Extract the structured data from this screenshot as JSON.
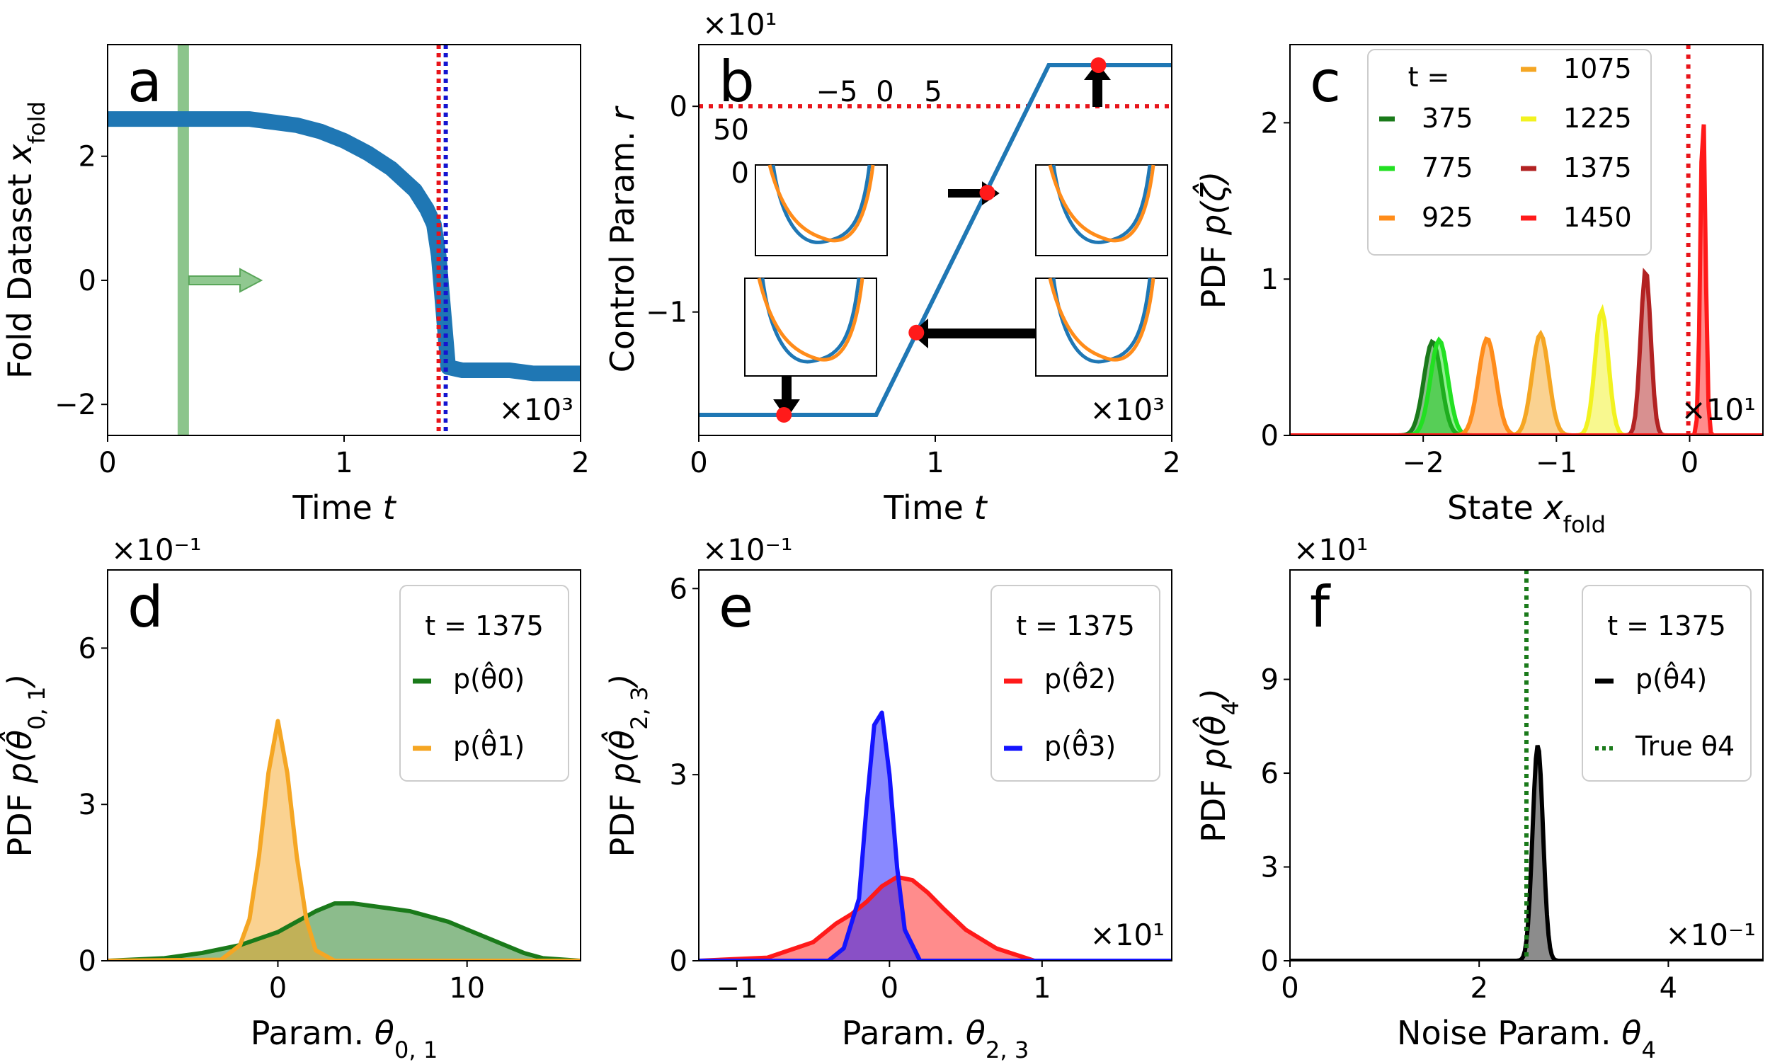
{
  "chart_data": [
    {
      "panel": "a",
      "type": "line",
      "xlabel": "Time t",
      "ylabel": "Fold Dataset x_fold",
      "x_multiplier": "×10³",
      "xlim": [
        0,
        2
      ],
      "ylim": [
        -2.5,
        3.8
      ],
      "xticks": [
        {
          "v": 0,
          "l": "0"
        },
        {
          "v": 1,
          "l": "1"
        },
        {
          "v": 2,
          "l": "2"
        }
      ],
      "yticks": [
        {
          "v": -2,
          "l": "−2"
        },
        {
          "v": 0,
          "l": "0"
        },
        {
          "v": 2,
          "l": "2"
        }
      ],
      "series": [
        {
          "x": [
            0,
            0.1,
            0.2,
            0.3,
            0.4,
            0.5,
            0.6,
            0.7,
            0.8,
            0.9,
            1.0,
            1.1,
            1.2,
            1.3,
            1.35,
            1.38,
            1.4,
            1.42,
            1.44,
            1.5,
            1.6,
            1.7,
            1.8,
            1.9,
            2.0
          ],
          "y": [
            2.6,
            2.6,
            2.6,
            2.6,
            2.6,
            2.6,
            2.6,
            2.55,
            2.5,
            2.4,
            2.25,
            2.05,
            1.8,
            1.45,
            1.15,
            0.9,
            0.4,
            -0.5,
            -1.4,
            -1.45,
            -1.45,
            -1.45,
            -1.5,
            -1.5,
            -1.5
          ],
          "color": "#1f77b4"
        }
      ],
      "band": {
        "x": 0.32,
        "color": "#7fbf7f"
      },
      "red_vline": 1.4,
      "blue_vline": 1.43,
      "panel_letter": "a"
    },
    {
      "panel": "b",
      "type": "line",
      "xlabel": "Time t",
      "ylabel": "Control Param. r",
      "x_multiplier": "×10³",
      "y_multiplier": "×10¹",
      "xlim": [
        0,
        2
      ],
      "ylim": [
        -1.6,
        0.3
      ],
      "xticks": [
        {
          "v": 0,
          "l": "0"
        },
        {
          "v": 1,
          "l": "1"
        },
        {
          "v": 2,
          "l": "2"
        }
      ],
      "yticks": [
        {
          "v": -1,
          "l": "−1"
        },
        {
          "v": 0,
          "l": "0"
        }
      ],
      "series": [
        {
          "x": [
            0,
            0.75,
            1.48,
            2.0
          ],
          "y": [
            -1.5,
            -1.5,
            0.2,
            0.2
          ],
          "color": "#1f77b4"
        }
      ],
      "red_hline": 0,
      "markers": [
        {
          "x": 0.36,
          "y": -1.5
        },
        {
          "x": 0.92,
          "y": -1.1
        },
        {
          "x": 1.22,
          "y": -0.42
        },
        {
          "x": 1.69,
          "y": 0.2
        }
      ],
      "inset_xticks": [
        "−5",
        "0",
        "5"
      ],
      "inset_yticks": [
        "50",
        "0"
      ],
      "panel_letter": "b"
    },
    {
      "panel": "c",
      "type": "area",
      "xlabel": "State x_fold",
      "ylabel": "PDF p(ζ̂)",
      "x_multiplier": "×10¹",
      "xlim": [
        -3.0,
        0.55
      ],
      "ylim": [
        0,
        2.5
      ],
      "xticks": [
        {
          "v": -2,
          "l": "−2"
        },
        {
          "v": -1,
          "l": "−1"
        },
        {
          "v": 0,
          "l": "0"
        }
      ],
      "yticks": [
        {
          "v": 0,
          "l": "0"
        },
        {
          "v": 1,
          "l": "1"
        },
        {
          "v": 2,
          "l": "2"
        }
      ],
      "legend_title": "t =",
      "series": [
        {
          "name": "375",
          "mu": -1.93,
          "sigma": 0.065,
          "peak": 0.6,
          "color": "#1a7a1a"
        },
        {
          "name": "775",
          "mu": -1.88,
          "sigma": 0.065,
          "peak": 0.61,
          "color": "#22e022"
        },
        {
          "name": "925",
          "mu": -1.52,
          "sigma": 0.065,
          "peak": 0.62,
          "color": "#ff8c1a"
        },
        {
          "name": "1075",
          "mu": -1.12,
          "sigma": 0.062,
          "peak": 0.65,
          "color": "#f5a623"
        },
        {
          "name": "1225",
          "mu": -0.66,
          "sigma": 0.05,
          "peak": 0.8,
          "color": "#f2f21f"
        },
        {
          "name": "1375",
          "mu": -0.33,
          "sigma": 0.038,
          "peak": 1.06,
          "color": "#b22222"
        },
        {
          "name": "1450",
          "mu": 0.1,
          "sigma": 0.019,
          "peak": 2.1,
          "color": "#ff1a1a"
        }
      ],
      "red_vline": -0.01,
      "panel_letter": "c"
    },
    {
      "panel": "d",
      "type": "area",
      "xlabel": "Param. θ0,1",
      "ylabel": "PDF p(θ̂0,1)",
      "y_multiplier": "×10⁻¹",
      "xlim": [
        -9,
        16
      ],
      "ylim": [
        0,
        0.75
      ],
      "xticks": [
        {
          "v": 0,
          "l": "0"
        },
        {
          "v": 10,
          "l": "10"
        }
      ],
      "yticks": [
        {
          "v": 0,
          "l": "0"
        },
        {
          "v": 0.3,
          "l": "3"
        },
        {
          "v": 0.6,
          "l": "6"
        }
      ],
      "legend_title": "t = 1375",
      "series": [
        {
          "name": "p(θ̂0)",
          "color": "#1a7a1a",
          "x": [
            -9,
            -6,
            -4,
            -2,
            0,
            1,
            2,
            3,
            4,
            5,
            6,
            7,
            8,
            9,
            10,
            11,
            12,
            13,
            14,
            16
          ],
          "y": [
            0,
            0.005,
            0.015,
            0.03,
            0.055,
            0.075,
            0.095,
            0.11,
            0.11,
            0.105,
            0.1,
            0.095,
            0.085,
            0.075,
            0.06,
            0.045,
            0.03,
            0.015,
            0.005,
            0
          ]
        },
        {
          "name": "p(θ̂1)",
          "color": "#f5a623",
          "x": [
            -9,
            -3,
            -2,
            -1.5,
            -1,
            -0.5,
            0,
            0.5,
            1,
            1.5,
            2,
            3,
            16
          ],
          "y": [
            0,
            0.002,
            0.03,
            0.08,
            0.2,
            0.36,
            0.46,
            0.36,
            0.2,
            0.08,
            0.02,
            0,
            0
          ]
        }
      ],
      "panel_letter": "d"
    },
    {
      "panel": "e",
      "type": "area",
      "xlabel": "Param. θ2,3",
      "ylabel": "PDF p(θ̂2,3)",
      "x_multiplier": "×10¹",
      "y_multiplier": "×10⁻¹",
      "xlim": [
        -1.25,
        1.85
      ],
      "ylim": [
        0,
        0.63
      ],
      "xticks": [
        {
          "v": -1,
          "l": "−1"
        },
        {
          "v": 0,
          "l": "0"
        },
        {
          "v": 1,
          "l": "1"
        }
      ],
      "yticks": [
        {
          "v": 0,
          "l": "0"
        },
        {
          "v": 0.3,
          "l": "3"
        },
        {
          "v": 0.6,
          "l": "6"
        }
      ],
      "legend_title": "t = 1375",
      "series": [
        {
          "name": "p(θ̂2)",
          "color": "#ff1a1a",
          "x": [
            -1.25,
            -0.8,
            -0.5,
            -0.35,
            -0.25,
            -0.15,
            -0.05,
            0.05,
            0.15,
            0.25,
            0.35,
            0.5,
            0.7,
            0.95,
            1.85
          ],
          "y": [
            0,
            0.005,
            0.03,
            0.06,
            0.075,
            0.095,
            0.12,
            0.135,
            0.13,
            0.11,
            0.085,
            0.05,
            0.02,
            0,
            0
          ]
        },
        {
          "name": "p(θ̂3)",
          "color": "#1414ff",
          "x": [
            -1.25,
            -0.4,
            -0.3,
            -0.2,
            -0.15,
            -0.1,
            -0.05,
            0,
            0.05,
            0.1,
            0.2,
            1.85
          ],
          "y": [
            0,
            0,
            0.02,
            0.1,
            0.25,
            0.38,
            0.4,
            0.3,
            0.15,
            0.05,
            0,
            0
          ]
        }
      ],
      "panel_letter": "e"
    },
    {
      "panel": "f",
      "type": "area",
      "xlabel": "Noise Param. θ4",
      "ylabel": "PDF p(θ̂4)",
      "x_multiplier": "×10⁻¹",
      "y_multiplier": "×10¹",
      "xlim": [
        0,
        5
      ],
      "ylim": [
        0,
        12.5
      ],
      "xticks": [
        {
          "v": 0,
          "l": "0"
        },
        {
          "v": 2,
          "l": "2"
        },
        {
          "v": 4,
          "l": "4"
        }
      ],
      "yticks": [
        {
          "v": 0,
          "l": "0"
        },
        {
          "v": 3,
          "l": "3"
        },
        {
          "v": 6,
          "l": "6"
        },
        {
          "v": 9,
          "l": "9"
        }
      ],
      "legend_title": "t = 1375",
      "series": [
        {
          "name": "p(θ̂4)",
          "mu": 2.62,
          "sigma": 0.055,
          "peak": 6.9,
          "color": "#000000"
        },
        {
          "name": "True θ4",
          "vline": 2.5,
          "color": "#1a7a1a"
        }
      ],
      "panel_letter": "f"
    }
  ]
}
